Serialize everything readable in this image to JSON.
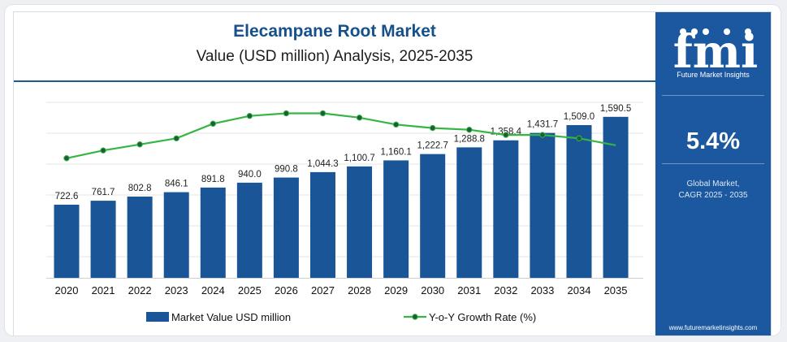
{
  "header": {
    "title": "Elecampane Root Market",
    "subtitle": "Value (USD million) Analysis, 2025-2035"
  },
  "sidebar": {
    "logo_text": "fmi",
    "logo_subtitle": "Future Market Insights",
    "cagr_value": "5.4%",
    "cagr_label_line1": "Global Market,",
    "cagr_label_line2": "CAGR 2025 - 2035",
    "website": "www.futuremarketinsights.com"
  },
  "colors": {
    "bar": "#1a5598",
    "line": "#35b544",
    "title": "#16508a",
    "sidebar": "#1b58a0",
    "stripe_green": "#5aae4b",
    "stripe_orange": "#e8702a",
    "stripe_purple": "#8a3fa0"
  },
  "chart_data": {
    "type": "bar",
    "categories": [
      "2020",
      "2021",
      "2022",
      "2023",
      "2024",
      "2025",
      "2026",
      "2027",
      "2028",
      "2029",
      "2030",
      "2031",
      "2032",
      "2033",
      "2034",
      "2035"
    ],
    "series": [
      {
        "name": "Market Value USD million",
        "type": "bar",
        "values": [
          722.6,
          761.7,
          802.8,
          846.1,
          891.8,
          940.0,
          990.8,
          1044.3,
          1100.7,
          1160.1,
          1222.7,
          1288.8,
          1358.4,
          1431.7,
          1509.0,
          1590.5
        ],
        "labels": [
          "722.6",
          "761.7",
          "802.8",
          "846.1",
          "891.8",
          "940.0",
          "990.8",
          "1,044.3",
          "1,100.7",
          "1,160.1",
          "1,222.7",
          "1,288.8",
          "1,358.4",
          "1,431.7",
          "1,509.0",
          "1,590.5"
        ]
      },
      {
        "name": "Y-o-Y Growth Rate (%)",
        "type": "line",
        "values": [
          null,
          5.4,
          5.4,
          5.4,
          5.4,
          5.4,
          5.4,
          5.4,
          5.4,
          5.4,
          5.4,
          5.4,
          5.4,
          5.4,
          5.4,
          5.4
        ],
        "relative_shape": [
          4.6,
          5.05,
          5.4,
          5.75,
          6.6,
          7.05,
          7.2,
          7.2,
          6.95,
          6.55,
          6.35,
          6.25,
          5.95,
          5.95,
          5.75,
          5.35
        ]
      }
    ],
    "legend": [
      "Market Value USD million",
      "Y-o-Y Growth Rate (%)"
    ],
    "legend_position": "bottom",
    "y_axis_visible": false,
    "grid": "horizontal",
    "ylim": [
      0,
      1700
    ]
  }
}
